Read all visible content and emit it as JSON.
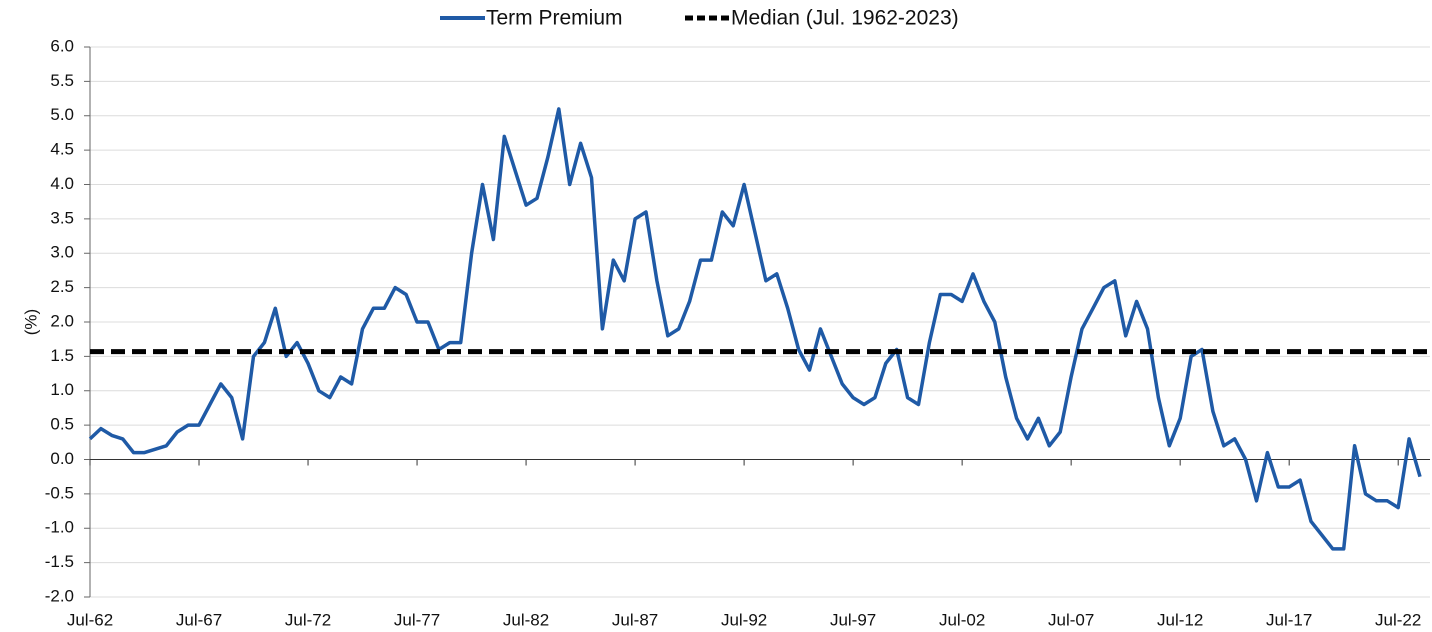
{
  "chart_data": {
    "type": "line",
    "y_label": "(%)",
    "categories": [
      "Jul-62",
      null,
      null,
      null,
      null,
      null,
      null,
      null,
      null,
      null,
      "Jul-67",
      null,
      null,
      null,
      null,
      null,
      null,
      null,
      null,
      null,
      "Jul-72",
      null,
      null,
      null,
      null,
      null,
      null,
      null,
      null,
      null,
      "Jul-77",
      null,
      null,
      null,
      null,
      null,
      null,
      null,
      null,
      null,
      "Jul-82",
      null,
      null,
      null,
      null,
      null,
      null,
      null,
      null,
      null,
      "Jul-87",
      null,
      null,
      null,
      null,
      null,
      null,
      null,
      null,
      null,
      "Jul-92",
      null,
      null,
      null,
      null,
      null,
      null,
      null,
      null,
      null,
      "Jul-97",
      null,
      null,
      null,
      null,
      null,
      null,
      null,
      null,
      null,
      "Jul-02",
      null,
      null,
      null,
      null,
      null,
      null,
      null,
      null,
      null,
      "Jul-07",
      null,
      null,
      null,
      null,
      null,
      null,
      null,
      null,
      null,
      "Jul-12",
      null,
      null,
      null,
      null,
      null,
      null,
      null,
      null,
      null,
      "Jul-17",
      null,
      null,
      null,
      null,
      null,
      null,
      null,
      null,
      null,
      "Jul-22",
      null,
      null
    ],
    "series": [
      {
        "name": "Term Premium",
        "color": "#1f5aa6",
        "values": [
          0.3,
          0.45,
          0.35,
          0.3,
          0.1,
          0.1,
          0.15,
          0.2,
          0.4,
          0.5,
          0.5,
          0.8,
          1.1,
          0.9,
          0.3,
          1.5,
          1.7,
          2.2,
          1.5,
          1.7,
          1.4,
          1.0,
          0.9,
          1.2,
          1.1,
          1.9,
          2.2,
          2.2,
          2.5,
          2.4,
          2.0,
          2.0,
          1.6,
          1.7,
          1.7,
          3.0,
          4.0,
          3.2,
          4.7,
          4.2,
          3.7,
          3.8,
          4.4,
          5.1,
          4.0,
          4.6,
          4.1,
          1.9,
          2.9,
          2.6,
          3.5,
          3.6,
          2.6,
          1.8,
          1.9,
          2.3,
          2.9,
          2.9,
          3.6,
          3.4,
          4.0,
          3.3,
          2.6,
          2.7,
          2.2,
          1.6,
          1.3,
          1.9,
          1.5,
          1.1,
          0.9,
          0.8,
          0.9,
          1.4,
          1.6,
          0.9,
          0.8,
          1.7,
          2.4,
          2.4,
          2.3,
          2.7,
          2.3,
          2.0,
          1.2,
          0.6,
          0.3,
          0.6,
          0.2,
          0.4,
          1.2,
          1.9,
          2.2,
          2.5,
          2.6,
          1.8,
          2.3,
          1.9,
          0.9,
          0.2,
          0.6,
          1.5,
          1.6,
          0.7,
          0.2,
          0.3,
          0.0,
          -0.6,
          0.1,
          -0.4,
          -0.4,
          -0.3,
          -0.9,
          -1.1,
          -1.3,
          -1.3,
          0.2,
          -0.5,
          -0.6,
          -0.6,
          -0.7,
          0.3,
          -0.25
        ]
      }
    ],
    "median": {
      "name": "Median (Jul. 1962-2023)",
      "color": "#000000",
      "value": 1.57,
      "dashed": true
    },
    "ylim": [
      -2,
      6
    ],
    "yticks": [
      {
        "value": -2,
        "label": "-2.0"
      },
      -1.5,
      {
        "value": -1,
        "label": "-1.0"
      },
      -0.5,
      {
        "value": 0,
        "label": "0.0"
      },
      0.5,
      {
        "value": 1,
        "label": "1.0"
      },
      1.5,
      {
        "value": 2,
        "label": "2.0"
      },
      2.5,
      {
        "value": 3,
        "label": "3.0"
      },
      3.5,
      {
        "value": 4,
        "label": "4.0"
      },
      4.5,
      {
        "value": 5,
        "label": "5.0"
      },
      5.5,
      {
        "value": 6,
        "label": "6.0"
      }
    ],
    "grid": true
  }
}
